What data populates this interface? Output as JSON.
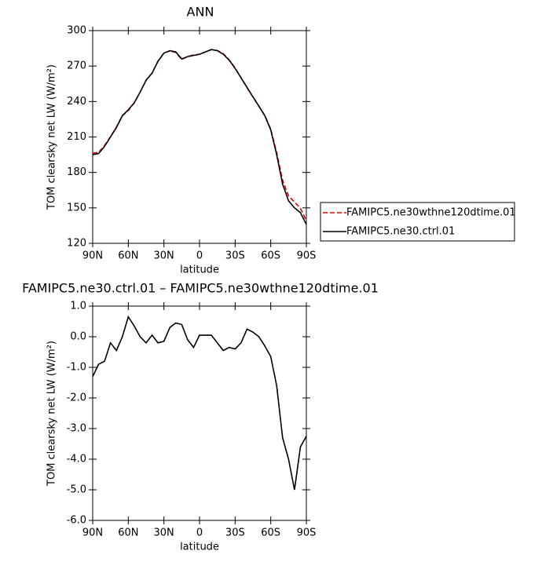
{
  "chart_data": [
    {
      "type": "line",
      "title": "ANN",
      "xlabel": "latitude",
      "ylabel": "TOM clearsky net LW (W/m²)",
      "x": [
        90,
        85,
        80,
        75,
        70,
        65,
        60,
        55,
        50,
        45,
        40,
        35,
        30,
        25,
        20,
        15,
        10,
        5,
        0,
        -5,
        -10,
        -15,
        -20,
        -25,
        -30,
        -35,
        -40,
        -45,
        -50,
        -55,
        -60,
        -65,
        -70,
        -75,
        -80,
        -85,
        -90
      ],
      "xlim": [
        90,
        -90
      ],
      "xticks": [
        {
          "value": 90,
          "label": "90N"
        },
        {
          "value": 60,
          "label": "60N"
        },
        {
          "value": 30,
          "label": "30N"
        },
        0,
        {
          "value": -30,
          "label": "30S"
        },
        {
          "value": -60,
          "label": "60S"
        },
        {
          "value": -90,
          "label": "90S"
        }
      ],
      "ylim": [
        120,
        300
      ],
      "yticks": [
        120,
        150,
        180,
        210,
        240,
        270,
        300
      ],
      "legend": "right",
      "series": [
        {
          "name": "FAMIPC5.ne30wthne120dtime.01",
          "color": "#e00000",
          "line_style": "dashed",
          "values": [
            196.3,
            196.9,
            202.8,
            210.2,
            218.45,
            228,
            232.35,
            238.65,
            248,
            258.2,
            263.95,
            274.2,
            281.15,
            282.7,
            281.55,
            275.6,
            278.1,
            279.35,
            279.95,
            281.95,
            283.95,
            283.2,
            280.45,
            275.35,
            268.4,
            260.2,
            251.75,
            243.85,
            236,
            228.3,
            216.65,
            196.6,
            173.3,
            160,
            155,
            149.6,
            139.25
          ]
        },
        {
          "name": "FAMIPC5.ne30.ctrl.01",
          "color": "#000000",
          "line_style": "solid",
          "values": [
            195,
            196,
            202,
            210,
            218,
            228,
            233,
            239,
            248,
            258,
            264,
            274,
            281,
            283,
            282,
            276,
            278,
            279,
            280,
            282,
            284,
            283,
            280,
            275,
            268,
            260,
            252,
            244,
            236,
            228,
            216,
            195,
            170,
            156,
            150,
            146,
            136
          ]
        }
      ]
    },
    {
      "type": "line",
      "title": "FAMIPC5.ne30.ctrl.01 – FAMIPC5.ne30wthne120dtime.01",
      "xlabel": "latitude",
      "ylabel": "TOM clearsky net LW (W/m²)",
      "x": [
        90,
        85,
        80,
        75,
        70,
        65,
        60,
        55,
        50,
        45,
        40,
        35,
        30,
        25,
        20,
        15,
        10,
        5,
        0,
        -5,
        -10,
        -15,
        -20,
        -25,
        -30,
        -35,
        -40,
        -45,
        -50,
        -55,
        -60,
        -65,
        -70,
        -75,
        -80,
        -85,
        -90
      ],
      "xlim": [
        90,
        -90
      ],
      "xticks": [
        {
          "value": 90,
          "label": "90N"
        },
        {
          "value": 60,
          "label": "60N"
        },
        {
          "value": 30,
          "label": "30N"
        },
        0,
        {
          "value": -30,
          "label": "30S"
        },
        {
          "value": -60,
          "label": "60S"
        },
        {
          "value": -90,
          "label": "90S"
        }
      ],
      "ylim": [
        -6,
        1
      ],
      "yticks": [
        {
          "value": -6,
          "label": "-6.0"
        },
        {
          "value": -5,
          "label": "-5.0"
        },
        {
          "value": -4,
          "label": "-4.0"
        },
        {
          "value": -3,
          "label": "-3.0"
        },
        {
          "value": -2,
          "label": "-2.0"
        },
        {
          "value": -1,
          "label": "-1.0"
        },
        {
          "value": 0,
          "label": "0.0"
        },
        {
          "value": 1,
          "label": "1.0"
        }
      ],
      "series": [
        {
          "color": "#000000",
          "line_style": "solid",
          "values": [
            -1.3,
            -0.9,
            -0.8,
            -0.2,
            -0.45,
            0,
            0.65,
            0.35,
            0,
            -0.2,
            0.05,
            -0.2,
            -0.15,
            0.3,
            0.45,
            0.4,
            -0.1,
            -0.35,
            0.05,
            0.05,
            0.05,
            -0.2,
            -0.45,
            -0.35,
            -0.4,
            -0.2,
            0.25,
            0.15,
            0,
            -0.3,
            -0.65,
            -1.6,
            -3.3,
            -4.0,
            -5.0,
            -3.6,
            -3.25
          ]
        }
      ]
    }
  ]
}
